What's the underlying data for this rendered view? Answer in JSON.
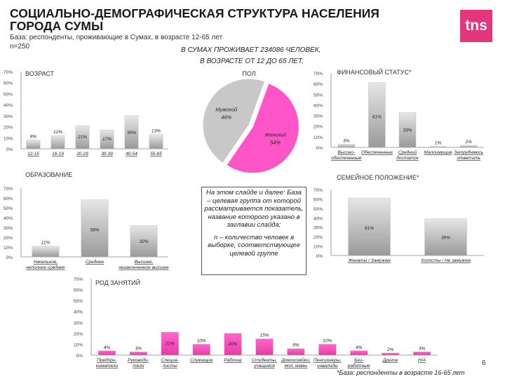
{
  "header": {
    "title": "СОЦИАЛЬНО-ДЕМОГРАФИЧЕСКАЯ СТРУКТУРА НАСЕЛЕНИЯ ГОРОДА СУМЫ",
    "subtitle": "База: респонденты, проживающие в Сумах, в возрасте 12-65 лет",
    "n_label": "n=250",
    "logo_text": "tns",
    "population_line1": "В СУМАХ ПРОЖИВАЕТ 234086 ЧЕЛОВЕК,",
    "population_line2": "В ВОЗРАСТЕ ОТ 12 ДО 65 ЛЕТ."
  },
  "note": {
    "p1": "На этом слайде и далее: База – целевая группа от которой рассматривается показатель, название которого указано в заглавии слайда;",
    "p2": "n – количество человек в выборке, соответствующее целевой группе"
  },
  "footer": {
    "footnote": "*База: респонденты в возрасте 16-65 лет",
    "page": "6"
  },
  "colors": {
    "accent": "#e5357c",
    "bar_gradient_top": "#d8d8d8",
    "bar_gradient_bottom": "#9a9a9a",
    "pie_male": "#c8c8c8",
    "pie_female": "#ff55c8"
  },
  "chart_data": [
    {
      "id": "age",
      "type": "bar",
      "title": "ВОЗРАСТ",
      "categories": [
        "12-15",
        "16-19",
        "20-29",
        "30-39",
        "40-54",
        "55-65"
      ],
      "values": [
        8,
        12,
        21,
        17,
        30,
        13
      ],
      "labels": [
        "8%",
        "12%",
        "21%",
        "17%",
        "30%",
        "13%"
      ],
      "ylim": [
        0,
        70
      ],
      "yticks": [
        "0%",
        "10%",
        "20%",
        "30%",
        "40%",
        "50%",
        "60%",
        "70%"
      ],
      "grid": false
    },
    {
      "id": "gender",
      "type": "pie",
      "title": "ПОЛ",
      "categories": [
        "Женский",
        "Мужской"
      ],
      "values": [
        54,
        46
      ],
      "labels": [
        "54%",
        "46%"
      ]
    },
    {
      "id": "finance",
      "type": "bar",
      "title": "ФИНАНСОВЫЙ СТАТУС*",
      "categories": [
        "Высоко-обеспеченные",
        "Обеспеченные",
        "Средний достаток",
        "Малоимущие",
        "Затрудняюсь ответить"
      ],
      "values": [
        3,
        61,
        33,
        1,
        2
      ],
      "labels": [
        "3%",
        "61%",
        "33%",
        "1%",
        "2%"
      ],
      "ylim": [
        0,
        70
      ],
      "yticks": [
        "0%",
        "10%",
        "20%",
        "30%",
        "40%",
        "50%",
        "60%",
        "70%"
      ],
      "grid": false
    },
    {
      "id": "education",
      "type": "bar",
      "title": "ОБРАЗОВАНИЕ",
      "categories": [
        "Начальное, неполное среднее",
        "Среднее",
        "Высшее, незаконченное высшее"
      ],
      "values": [
        11,
        58,
        32
      ],
      "labels": [
        "11%",
        "58%",
        "32%"
      ],
      "ylim": [
        0,
        70
      ],
      "yticks": [
        "0%",
        "10%",
        "20%",
        "30%",
        "40%",
        "50%",
        "60%",
        "70%"
      ],
      "grid": false
    },
    {
      "id": "family",
      "type": "bar",
      "title": "СЕМЕЙНОЕ ПОЛОЖЕНИЕ*",
      "categories": [
        "Женаты / Замужем",
        "Холосты / Не замужем"
      ],
      "values": [
        61,
        39
      ],
      "labels": [
        "61%",
        "39%"
      ],
      "ylim": [
        0,
        70
      ],
      "yticks": [
        "0%",
        "10%",
        "20%",
        "30%",
        "40%",
        "50%",
        "60%",
        "70%"
      ],
      "grid": false
    },
    {
      "id": "occupation",
      "type": "bar",
      "title": "РОД ЗАНЯТИЙ",
      "categories": [
        "Предпри-ниматели",
        "Руководи-тели",
        "Специа-листы",
        "Служащие",
        "Рабочие",
        "Студенты, учащиеся",
        "Домохозяйки, мол. мамы",
        "Пенсионеры, инвалиды",
        "Без-работные",
        "Другое",
        "Н/А"
      ],
      "values": [
        4,
        3,
        21,
        10,
        20,
        15,
        6,
        10,
        4,
        2,
        3
      ],
      "labels": [
        "4%",
        "3%",
        "21%",
        "10%",
        "20%",
        "15%",
        "6%",
        "10%",
        "4%",
        "2%",
        "3%"
      ],
      "ylim": [
        0,
        70
      ],
      "yticks": [
        "0%",
        "10%",
        "20%",
        "30%",
        "40%",
        "50%",
        "60%",
        "70%"
      ],
      "grid": false
    }
  ]
}
